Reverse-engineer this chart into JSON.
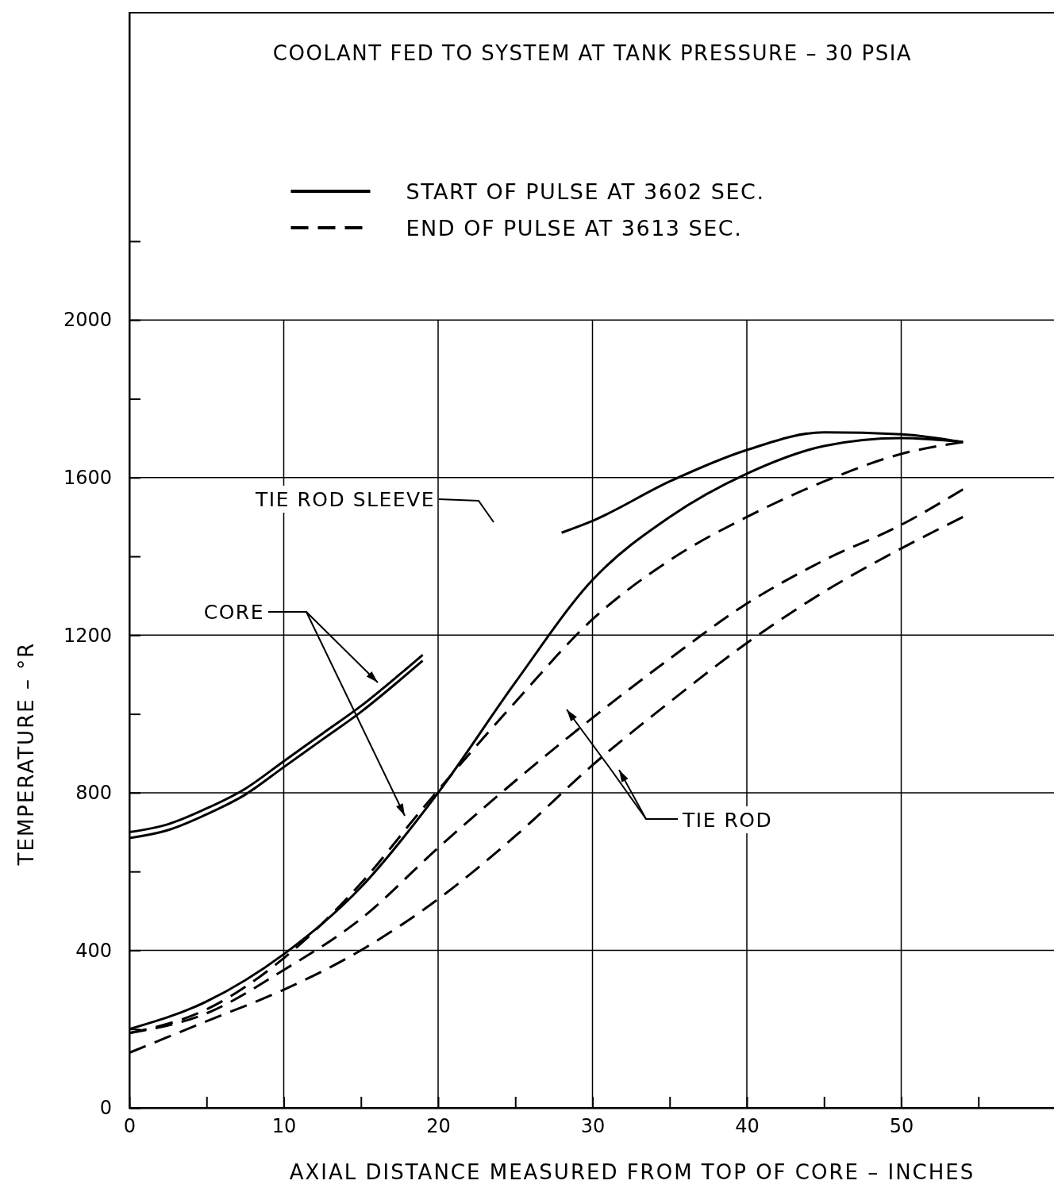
{
  "chart_data": {
    "type": "line",
    "title": "COOLANT FED TO SYSTEM AT TANK PRESSURE – 30 PSIA",
    "xlabel": "AXIAL DISTANCE MEASURED FROM TOP OF CORE – INCHES",
    "ylabel": "TEMPERATURE – °R",
    "xlim": [
      0,
      60
    ],
    "ylim": [
      0,
      2780
    ],
    "xticks": [
      0,
      {
        "value": 5,
        "label": null
      },
      10,
      {
        "value": 15,
        "label": null
      },
      20,
      {
        "value": 25,
        "label": null
      },
      30,
      {
        "value": 35,
        "label": null
      },
      40,
      {
        "value": 45,
        "label": null
      },
      50,
      {
        "value": 55,
        "label": null
      }
    ],
    "yticks": [
      0,
      {
        "value": 200,
        "label": null
      },
      400,
      {
        "value": 600,
        "label": null
      },
      800,
      {
        "value": 1000,
        "label": null
      },
      1200,
      {
        "value": 1400,
        "label": null
      },
      1600,
      {
        "value": 1800,
        "label": null
      },
      2000,
      {
        "value": 2200,
        "label": null
      }
    ],
    "grid": true,
    "legend": "top",
    "marker": "none",
    "series": [
      {
        "name": "START OF PULSE AT 3602 SEC.",
        "color": "#000000",
        "line_style": "solid",
        "x": [
          0,
          2.5,
          5,
          7.5,
          10,
          12.5,
          15,
          17.5,
          19
        ],
        "values": [
          700,
          720,
          760,
          810,
          880,
          950,
          1020,
          1100,
          1150
        ]
      },
      {
        "color": "#000000",
        "line_style": "solid",
        "x": [
          0,
          2.5,
          5,
          7.5,
          10,
          12.5,
          15,
          17.5,
          19
        ],
        "values": [
          685,
          705,
          745,
          795,
          865,
          935,
          1005,
          1085,
          1135
        ]
      },
      {
        "color": "#000000",
        "line_style": "solid",
        "x": [
          0,
          5,
          10,
          15,
          20,
          25,
          30,
          35,
          40,
          45,
          50,
          54
        ],
        "values": [
          200,
          270,
          390,
          560,
          800,
          1080,
          1340,
          1500,
          1610,
          1680,
          1700,
          1690
        ]
      },
      {
        "color": "#000000",
        "line_style": "solid",
        "x": [
          28,
          30,
          35,
          40,
          45,
          50,
          54
        ],
        "values": [
          1460,
          1490,
          1590,
          1670,
          1715,
          1710,
          1690
        ]
      },
      {
        "name": "END OF PULSE AT 3613 SEC.",
        "color": "#000000",
        "line_style": "dashed",
        "x": [
          0,
          5,
          10,
          15,
          19,
          25,
          30,
          35,
          40,
          45,
          50,
          54
        ],
        "values": [
          190,
          250,
          380,
          570,
          760,
          1030,
          1240,
          1390,
          1500,
          1590,
          1660,
          1690
        ]
      },
      {
        "color": "#000000",
        "line_style": "dashed",
        "x": [
          0,
          5,
          10,
          15,
          20,
          25,
          30,
          35,
          40,
          45,
          50,
          54
        ],
        "values": [
          190,
          240,
          350,
          480,
          660,
          830,
          990,
          1140,
          1280,
          1390,
          1480,
          1570
        ]
      },
      {
        "color": "#000000",
        "line_style": "dashed",
        "x": [
          0,
          5,
          10,
          15,
          20,
          25,
          30,
          35,
          40,
          45,
          50,
          54
        ],
        "values": [
          140,
          220,
          300,
          400,
          530,
          690,
          870,
          1030,
          1180,
          1310,
          1420,
          1500
        ]
      }
    ],
    "annotations": [
      "CORE",
      "TIE ROD SLEEVE",
      "TIE ROD"
    ]
  }
}
